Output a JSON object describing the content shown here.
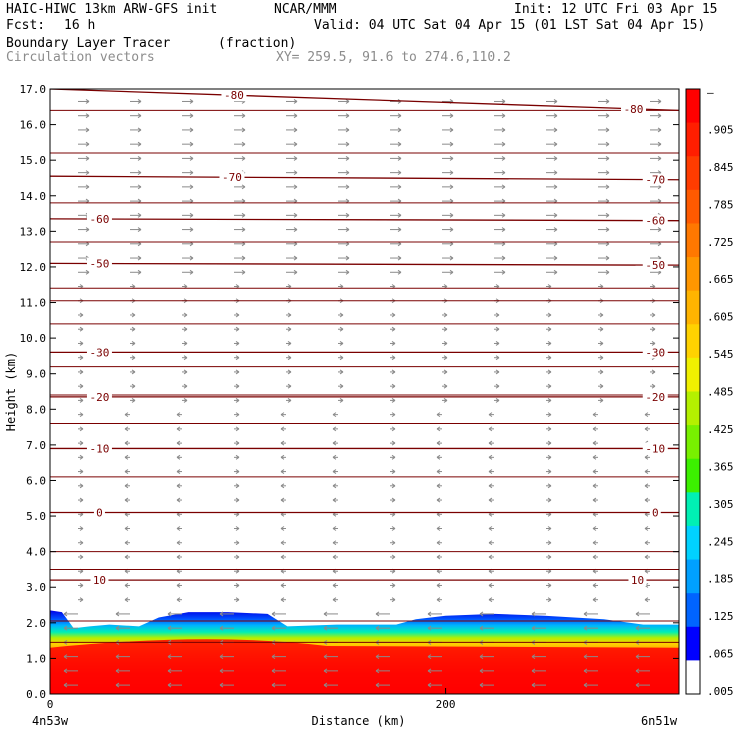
{
  "header": {
    "model": "HAIC-HIWC 13km ARW-GFS init",
    "org": "NCAR/MMM",
    "init": "Init: 12 UTC Fri 03 Apr 15",
    "fcst_label": "Fcst:",
    "fcst_value": "16 h",
    "valid": "Valid: 04 UTC Sat 04 Apr 15 (01 LST Sat 04 Apr 15)",
    "field": "Boundary Layer Tracer",
    "units": "(fraction)",
    "vectors": "Circulation vectors",
    "xy": "XY= 259.5, 91.6 to 274.6,110.2"
  },
  "chart_data": {
    "type": "heatmap",
    "title": "Boundary Layer Tracer",
    "units": "(fraction)",
    "xlabel": "Distance (km)",
    "ylabel": "Height (km)",
    "xlim": [
      0,
      318
    ],
    "ylim": [
      0,
      17
    ],
    "x_ticks": [
      "0",
      "200"
    ],
    "x_tick_values": [
      0,
      200
    ],
    "x_end_labels": {
      "left": "4n53w",
      "right": "6n51w"
    },
    "y_ticks": [
      "0.0",
      "1.0",
      "2.0",
      "3.0",
      "4.0",
      "5.0",
      "6.0",
      "7.0",
      "8.0",
      "9.0",
      "10.0",
      "11.0",
      "12.0",
      "13.0",
      "14.0",
      "15.0",
      "16.0",
      "17.0"
    ],
    "y_tick_values": [
      0,
      1,
      2,
      3,
      4,
      5,
      6,
      7,
      8,
      9,
      10,
      11,
      12,
      13,
      14,
      15,
      16,
      17
    ],
    "colorbar": {
      "labels": [
        "–",
        ".905",
        ".845",
        ".785",
        ".725",
        ".665",
        ".605",
        ".545",
        ".485",
        ".425",
        ".365",
        ".305",
        ".245",
        ".185",
        ".125",
        ".065",
        ".005"
      ],
      "colors": [
        "#ff0000",
        "#ff1e00",
        "#ff3c00",
        "#ff5a00",
        "#ff7800",
        "#ff9600",
        "#ffb400",
        "#ffd200",
        "#f0f000",
        "#b4f000",
        "#78f000",
        "#3cf000",
        "#00f0b4",
        "#00d2ff",
        "#00a0ff",
        "#0064ff",
        "#0000ff",
        "#ffffff"
      ]
    },
    "tracer_top_km": [
      [
        0,
        2.35
      ],
      [
        6,
        2.3
      ],
      [
        12,
        1.85
      ],
      [
        20,
        1.9
      ],
      [
        30,
        1.95
      ],
      [
        45,
        1.9
      ],
      [
        55,
        2.15
      ],
      [
        70,
        2.3
      ],
      [
        90,
        2.3
      ],
      [
        110,
        2.25
      ],
      [
        120,
        1.9
      ],
      [
        145,
        1.95
      ],
      [
        160,
        1.95
      ],
      [
        175,
        1.95
      ],
      [
        185,
        2.1
      ],
      [
        200,
        2.2
      ],
      [
        225,
        2.25
      ],
      [
        250,
        2.2
      ],
      [
        280,
        2.1
      ],
      [
        300,
        1.95
      ],
      [
        318,
        1.95
      ]
    ],
    "isotherms_c": [
      {
        "value": -80,
        "label": "-80",
        "left_km": 17.0,
        "right_km": 16.4,
        "label_x": [
          93,
          295
        ]
      },
      {
        "value": -70,
        "label": "-70",
        "left_km": 14.55,
        "right_km": 14.45,
        "label_x": [
          92,
          306
        ]
      },
      {
        "value": -60,
        "label": "-60",
        "left_km": 13.35,
        "right_km": 13.3,
        "label_x": [
          25,
          306
        ]
      },
      {
        "value": -50,
        "label": "-50",
        "left_km": 12.1,
        "right_km": 12.05,
        "label_x": [
          25,
          306
        ]
      },
      {
        "value": -30,
        "label": "-30",
        "left_km": 9.6,
        "right_km": 9.6,
        "label_x": [
          25,
          306
        ]
      },
      {
        "value": -20,
        "label": "-20",
        "left_km": 8.35,
        "right_km": 8.35,
        "label_x": [
          25,
          306
        ]
      },
      {
        "value": -10,
        "label": "-10",
        "left_km": 6.9,
        "right_km": 6.9,
        "label_x": [
          25,
          306
        ]
      },
      {
        "value": 0,
        "label": "0",
        "left_km": 5.1,
        "right_km": 5.1,
        "label_x": [
          25,
          306
        ]
      },
      {
        "value": 10,
        "label": "10",
        "left_km": 3.2,
        "right_km": 3.2,
        "label_x": [
          25,
          297
        ]
      }
    ],
    "temperature_lines_km": [
      1.45,
      2.05,
      3.5,
      4.0,
      6.1,
      7.6,
      8.4,
      9.2,
      10.4,
      11.05,
      11.4,
      12.7,
      13.8,
      15.2,
      16.4
    ]
  }
}
